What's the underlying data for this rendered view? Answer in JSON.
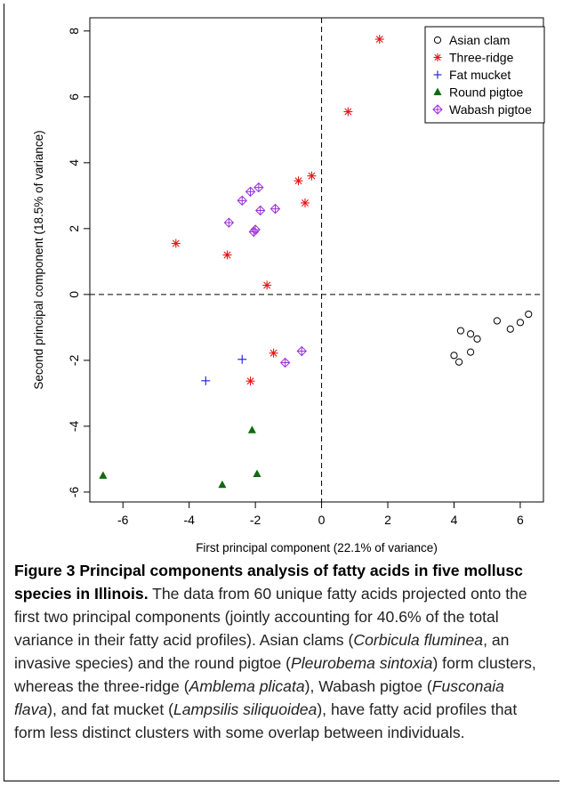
{
  "chart_data": {
    "type": "scatter",
    "xlabel": "First principal component (22.1% of variance)",
    "ylabel": "Second principal component (18.5% of variance)",
    "xlim": [
      -7.0,
      6.7
    ],
    "ylim": [
      -6.3,
      8.4
    ],
    "xticks": [
      -6,
      -4,
      -2,
      0,
      2,
      4,
      6
    ],
    "xtick_labels": [
      "-6",
      "-4",
      "-2",
      "0",
      "2",
      "4",
      "6"
    ],
    "yticks": [
      -6,
      -4,
      -2,
      0,
      2,
      4,
      6,
      8
    ],
    "ytick_labels": [
      "-6",
      "-4",
      "-2",
      "0",
      "2",
      "4",
      "6",
      "8"
    ],
    "reference_lines": {
      "x": 0,
      "y": 0,
      "style": "dashed"
    },
    "grid": false,
    "legend_position": "top-right",
    "series": [
      {
        "name": "Asian clam",
        "marker": "circle",
        "color": "#000000",
        "points": [
          [
            4.2,
            -1.1
          ],
          [
            4.5,
            -1.2
          ],
          [
            4.7,
            -1.35
          ],
          [
            5.3,
            -0.8
          ],
          [
            5.7,
            -1.05
          ],
          [
            6.0,
            -0.85
          ],
          [
            6.25,
            -0.6
          ],
          [
            4.0,
            -1.85
          ],
          [
            4.15,
            -2.05
          ],
          [
            4.5,
            -1.75
          ]
        ]
      },
      {
        "name": "Three-ridge",
        "marker": "asterisk",
        "color": "#e8141b",
        "points": [
          [
            1.75,
            7.75
          ],
          [
            0.8,
            5.55
          ],
          [
            -4.4,
            1.55
          ],
          [
            -2.85,
            1.2
          ],
          [
            -1.65,
            0.28
          ],
          [
            -0.7,
            3.45
          ],
          [
            -0.3,
            3.6
          ],
          [
            -0.5,
            2.78
          ],
          [
            -1.45,
            -1.78
          ],
          [
            -2.15,
            -2.63
          ]
        ]
      },
      {
        "name": "Fat mucket",
        "marker": "plus",
        "color": "#1a1ad6",
        "points": [
          [
            -3.5,
            -2.62
          ],
          [
            -2.4,
            -1.97
          ]
        ]
      },
      {
        "name": "Round pigtoe",
        "marker": "triangle",
        "color": "#0f6b0f",
        "points": [
          [
            -6.6,
            -5.5
          ],
          [
            -2.1,
            -4.12
          ],
          [
            -1.95,
            -5.45
          ],
          [
            -3.0,
            -5.78
          ]
        ]
      },
      {
        "name": "Wabash pigtoe",
        "marker": "diamond-plus",
        "color": "#9b30d9",
        "points": [
          [
            -2.4,
            2.85
          ],
          [
            -2.15,
            3.12
          ],
          [
            -1.9,
            3.25
          ],
          [
            -1.85,
            2.55
          ],
          [
            -1.4,
            2.6
          ],
          [
            -2.8,
            2.18
          ],
          [
            -2.05,
            1.9
          ],
          [
            -2.0,
            1.97
          ],
          [
            -0.6,
            -1.72
          ],
          [
            -1.1,
            -2.07
          ]
        ]
      }
    ]
  },
  "caption": {
    "figure_label": "Figure 3",
    "title": " Principal components analysis of fatty acids in five mollusc species in Illinois.",
    "body_1": " The data from 60 unique fatty acids projected onto the first two principal components (jointly accounting for 40.6% of the total variance in their fatty acid profiles). Asian clams (",
    "species_1": "Corbicula fluminea",
    "body_2": ", an invasive species) and the round pigtoe (",
    "species_2": "Pleurobema sintoxia",
    "body_3": ") form clusters, whereas the three-ridge (",
    "species_3": "Amblema plicata",
    "body_4": "), Wabash pigtoe (",
    "species_4": "Fusconaia flava",
    "body_5": "), and fat mucket (",
    "species_5": "Lampsilis siliquoidea",
    "body_6": "), have fatty acid profiles that form less distinct clusters with some overlap between individuals."
  }
}
